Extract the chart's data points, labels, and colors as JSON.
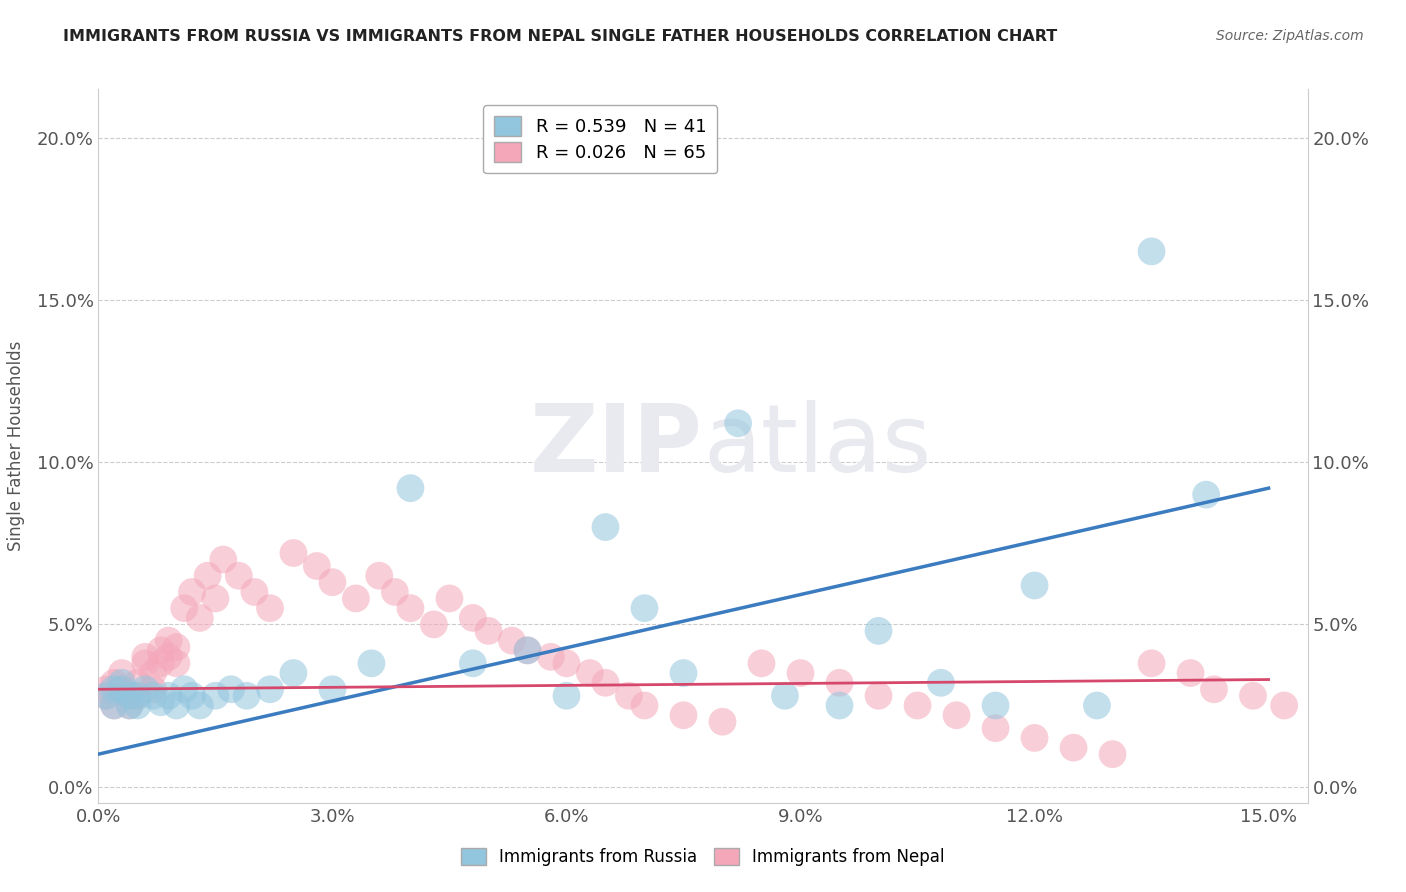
{
  "title": "IMMIGRANTS FROM RUSSIA VS IMMIGRANTS FROM NEPAL SINGLE FATHER HOUSEHOLDS CORRELATION CHART",
  "source": "Source: ZipAtlas.com",
  "ylabel": "Single Father Households",
  "legend_label1": "Immigrants from Russia",
  "legend_label2": "Immigrants from Nepal",
  "R1": 0.539,
  "N1": 41,
  "R2": 0.026,
  "N2": 65,
  "color1": "#92c5de",
  "color2": "#f4a7b9",
  "line_color1": "#3a7cbf",
  "line_color2": "#d6486b",
  "xlim": [
    0.0,
    0.155
  ],
  "ylim": [
    -0.005,
    0.215
  ],
  "xticks": [
    0.0,
    0.03,
    0.06,
    0.09,
    0.12,
    0.15
  ],
  "yticks": [
    0.0,
    0.05,
    0.1,
    0.15,
    0.2
  ],
  "xtick_labels": [
    "0.0%",
    "3.0%",
    "6.0%",
    "9.0%",
    "12.0%",
    "15.0%"
  ],
  "ytick_labels": [
    "0.0%",
    "5.0%",
    "10.0%",
    "15.0%",
    "20.0%"
  ],
  "russia_x": [
    0.001,
    0.002,
    0.002,
    0.003,
    0.003,
    0.004,
    0.004,
    0.005,
    0.005,
    0.006,
    0.007,
    0.008,
    0.009,
    0.01,
    0.011,
    0.012,
    0.013,
    0.015,
    0.017,
    0.019,
    0.022,
    0.025,
    0.03,
    0.035,
    0.04,
    0.048,
    0.055,
    0.06,
    0.065,
    0.07,
    0.075,
    0.082,
    0.088,
    0.095,
    0.1,
    0.108,
    0.115,
    0.12,
    0.128,
    0.135,
    0.142
  ],
  "russia_y": [
    0.028,
    0.03,
    0.025,
    0.03,
    0.032,
    0.025,
    0.028,
    0.028,
    0.025,
    0.03,
    0.028,
    0.026,
    0.028,
    0.025,
    0.03,
    0.028,
    0.025,
    0.028,
    0.03,
    0.028,
    0.03,
    0.035,
    0.03,
    0.038,
    0.092,
    0.038,
    0.042,
    0.028,
    0.08,
    0.055,
    0.035,
    0.112,
    0.028,
    0.025,
    0.048,
    0.032,
    0.025,
    0.062,
    0.025,
    0.165,
    0.09
  ],
  "nepal_x": [
    0.001,
    0.001,
    0.002,
    0.002,
    0.003,
    0.003,
    0.004,
    0.004,
    0.005,
    0.005,
    0.006,
    0.006,
    0.007,
    0.007,
    0.008,
    0.008,
    0.009,
    0.009,
    0.01,
    0.01,
    0.011,
    0.012,
    0.013,
    0.014,
    0.015,
    0.016,
    0.018,
    0.02,
    0.022,
    0.025,
    0.028,
    0.03,
    0.033,
    0.036,
    0.038,
    0.04,
    0.043,
    0.045,
    0.048,
    0.05,
    0.053,
    0.055,
    0.058,
    0.06,
    0.063,
    0.065,
    0.068,
    0.07,
    0.075,
    0.08,
    0.085,
    0.09,
    0.095,
    0.1,
    0.105,
    0.11,
    0.115,
    0.12,
    0.125,
    0.13,
    0.135,
    0.14,
    0.143,
    0.148,
    0.152
  ],
  "nepal_y": [
    0.03,
    0.028,
    0.032,
    0.025,
    0.03,
    0.035,
    0.025,
    0.028,
    0.028,
    0.032,
    0.04,
    0.038,
    0.035,
    0.03,
    0.042,
    0.038,
    0.045,
    0.04,
    0.038,
    0.043,
    0.055,
    0.06,
    0.052,
    0.065,
    0.058,
    0.07,
    0.065,
    0.06,
    0.055,
    0.072,
    0.068,
    0.063,
    0.058,
    0.065,
    0.06,
    0.055,
    0.05,
    0.058,
    0.052,
    0.048,
    0.045,
    0.042,
    0.04,
    0.038,
    0.035,
    0.032,
    0.028,
    0.025,
    0.022,
    0.02,
    0.038,
    0.035,
    0.032,
    0.028,
    0.025,
    0.022,
    0.018,
    0.015,
    0.012,
    0.01,
    0.038,
    0.035,
    0.03,
    0.028,
    0.025
  ],
  "background_color": "#ffffff",
  "watermark_color": "#e8eaf0"
}
